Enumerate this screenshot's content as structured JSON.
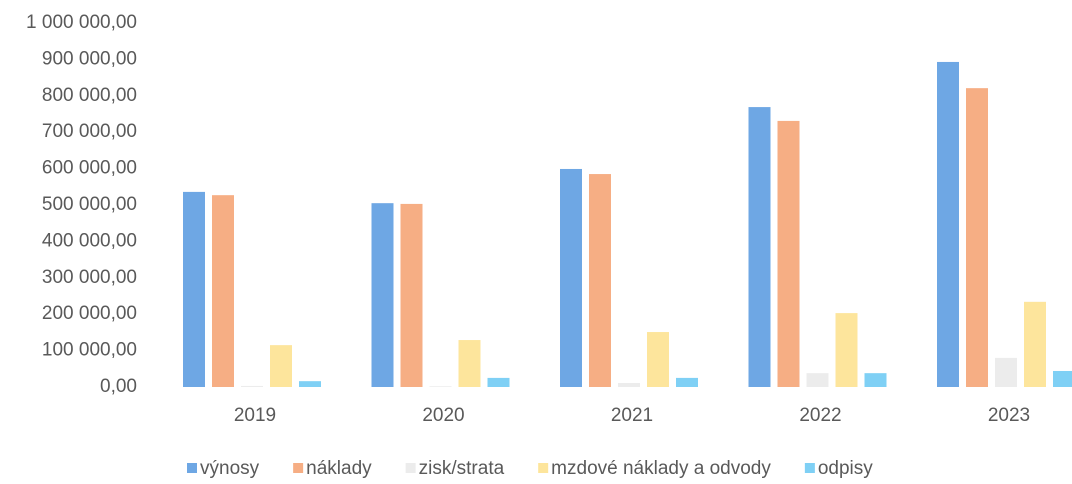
{
  "chart_data": {
    "type": "bar",
    "categories": [
      "2019",
      "2020",
      "2021",
      "2022",
      "2023"
    ],
    "series": [
      {
        "name": "výnosy",
        "color": "#6ea7e4",
        "values": [
          536000,
          505000,
          599000,
          769000,
          893000
        ]
      },
      {
        "name": "náklady",
        "color": "#f6ae84",
        "values": [
          527000,
          503000,
          585000,
          731000,
          821000
        ]
      },
      {
        "name": "zisk/strata",
        "color": "#ececec",
        "values": [
          3000,
          2000,
          11000,
          38000,
          80000
        ]
      },
      {
        "name": "mzdové náklady a odvody",
        "color": "#fde59c",
        "values": [
          115000,
          129000,
          151000,
          203000,
          234000
        ]
      },
      {
        "name": "odpisy",
        "color": "#7fd0f5",
        "values": [
          16000,
          25000,
          25000,
          38000,
          44000
        ]
      }
    ],
    "ylim": [
      0,
      1000000
    ],
    "yticks": [
      {
        "value": 0,
        "label": "0,00"
      },
      {
        "value": 100000,
        "label": "100 000,00"
      },
      {
        "value": 200000,
        "label": "200 000,00"
      },
      {
        "value": 300000,
        "label": "300 000,00"
      },
      {
        "value": 400000,
        "label": "400 000,00"
      },
      {
        "value": 500000,
        "label": "500 000,00"
      },
      {
        "value": 600000,
        "label": "600 000,00"
      },
      {
        "value": 700000,
        "label": "700 000,00"
      },
      {
        "value": 800000,
        "label": "800 000,00"
      },
      {
        "value": 900000,
        "label": "900 000,00"
      },
      {
        "value": 1000000,
        "label": "1 000 000,00"
      }
    ],
    "grid": false,
    "legend": "bottom"
  }
}
